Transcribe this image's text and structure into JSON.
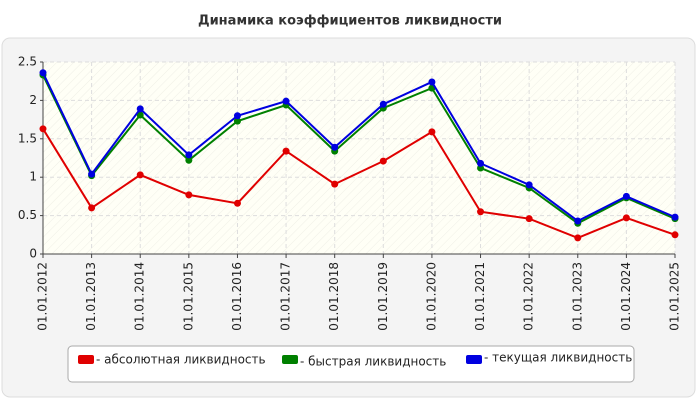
{
  "chart_data": {
    "type": "line",
    "title": "Динамика коэффициентов ликвидности",
    "categories": [
      "01.01.2012",
      "01.01.2013",
      "01.01.2014",
      "01.01.2015",
      "01.01.2016",
      "01.01.2017",
      "01.01.2018",
      "01.01.2019",
      "01.01.2020",
      "01.01.2021",
      "01.01.2022",
      "01.01.2023",
      "01.01.2024",
      "01.01.2025"
    ],
    "series": [
      {
        "name": "- абсолютная ликвидность",
        "color": "#e00000",
        "values": [
          1.63,
          0.6,
          1.03,
          0.77,
          0.66,
          1.34,
          0.91,
          1.21,
          1.59,
          0.55,
          0.46,
          0.21,
          0.47,
          0.25
        ]
      },
      {
        "name": "- быстрая ликвидность",
        "color": "#008000",
        "values": [
          2.33,
          1.02,
          1.81,
          1.22,
          1.73,
          1.94,
          1.34,
          1.9,
          2.16,
          1.12,
          0.86,
          0.4,
          0.73,
          0.46
        ]
      },
      {
        "name": "- текущая ликвидность",
        "color": "#0000e0",
        "values": [
          2.36,
          1.04,
          1.89,
          1.29,
          1.8,
          1.99,
          1.39,
          1.95,
          2.24,
          1.18,
          0.9,
          0.43,
          0.75,
          0.48
        ]
      }
    ],
    "ylim": [
      0,
      2.5
    ],
    "yticks": [
      0,
      0.5,
      1,
      1.5,
      2,
      2.5
    ],
    "grid": true,
    "legend": "bottom"
  }
}
